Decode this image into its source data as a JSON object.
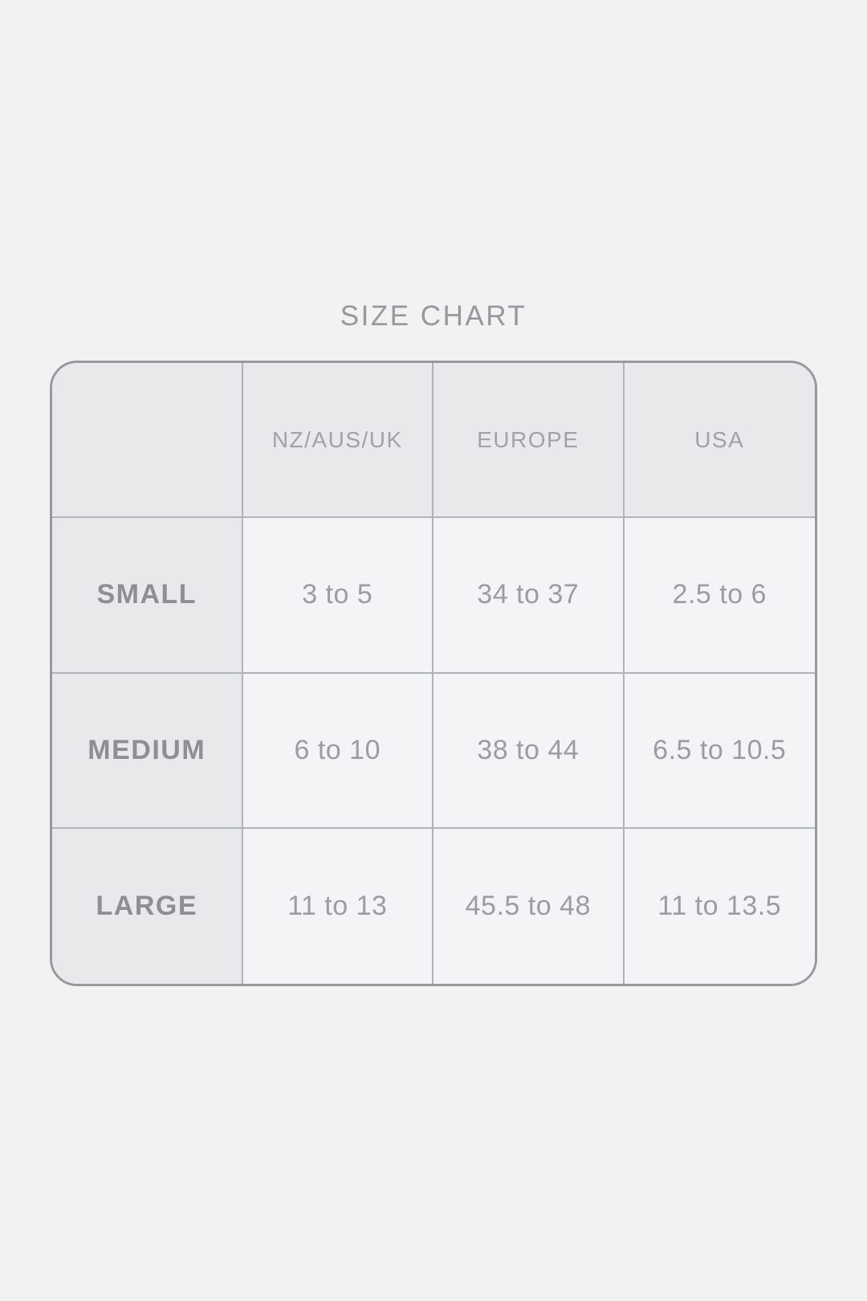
{
  "page": {
    "title": "SIZE CHART"
  },
  "colors": {
    "page_background": "#f2f2f3",
    "shaded_cell_background": "#e9e9eb",
    "data_cell_background": "#f4f4f6",
    "outer_border": "#97999d",
    "grid_line": "#b1b4b7",
    "title_text": "#96989c",
    "column_header_text": "#a0a2a6",
    "row_label_text": "#8d8f93",
    "value_text": "#9b9da1"
  },
  "chart_data": {
    "type": "table",
    "title": "SIZE CHART",
    "columns": [
      "",
      "NZ/AUS/UK",
      "EUROPE",
      "USA"
    ],
    "rows": [
      {
        "label": "SMALL",
        "values": [
          "3 to 5",
          "34 to 37",
          "2.5 to 6"
        ]
      },
      {
        "label": "MEDIUM",
        "values": [
          "6 to 10",
          "38 to 44",
          "6.5 to 10.5"
        ]
      },
      {
        "label": "LARGE",
        "values": [
          "11 to 13",
          "45.5 to 48",
          "11 to 13.5"
        ]
      }
    ]
  }
}
